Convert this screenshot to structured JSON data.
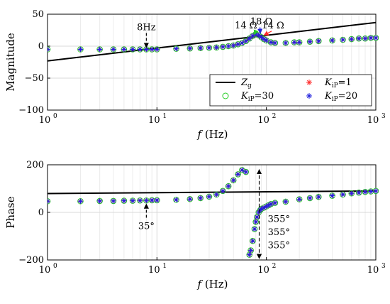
{
  "chart_data": [
    {
      "type": "scatter",
      "ylabel": "Magnitude",
      "xlabel_var": "f",
      "xlabel_unit": "(Hz)",
      "xscale": "log",
      "xlim": [
        1,
        1000
      ],
      "ylim": [
        -100,
        50
      ],
      "yticks": [
        "50",
        "0",
        "−50",
        "−100"
      ],
      "ytick_values": [
        50,
        0,
        -50,
        -100
      ],
      "xtick_mantissa": "10",
      "xtick_exponents": [
        "0",
        "1",
        "2",
        "3"
      ],
      "grid": true,
      "legend": {
        "placement": "bottom-right",
        "entries": [
          {
            "symbol": "line",
            "color": "#000000",
            "base": "Z",
            "sub": "g",
            "rest": ""
          },
          {
            "symbol": "star",
            "color": "#ff2a2a",
            "base": "K",
            "sub": "iP",
            "rest": "=1"
          },
          {
            "symbol": "circle",
            "color": "#22cc22",
            "base": "K",
            "sub": "iP",
            "rest": "=30"
          },
          {
            "symbol": "star",
            "color": "#2020dd",
            "base": "K",
            "sub": "iP",
            "rest": "=20"
          }
        ]
      },
      "series": [
        {
          "name": "Zg",
          "style": "line",
          "color": "#000000",
          "x": [
            1,
            1000
          ],
          "y": [
            -23,
            37
          ]
        },
        {
          "name": "KiP=1",
          "style": "star",
          "color": "#ff2a2a",
          "x": [
            1,
            2,
            3,
            4,
            5,
            6,
            7,
            8,
            9,
            10,
            15,
            20,
            25,
            30,
            35,
            40,
            45,
            50,
            55,
            60,
            65,
            70,
            75,
            80,
            85,
            90,
            95,
            100,
            110,
            120,
            150,
            180,
            200,
            250,
            300,
            400,
            500,
            600,
            700,
            800,
            900,
            1000
          ],
          "y": [
            -5,
            -5,
            -5,
            -5,
            -5,
            -5,
            -5,
            -5,
            -5,
            -5,
            -4,
            -3.5,
            -3,
            -2.5,
            -2,
            -1,
            0,
            1,
            3,
            5,
            8,
            12,
            16,
            19,
            17,
            14,
            11,
            9,
            6,
            5,
            5,
            6,
            6,
            7,
            8,
            9,
            10,
            11,
            12,
            12,
            13,
            13
          ]
        },
        {
          "name": "KiP=30",
          "style": "circle",
          "color": "#22cc22",
          "x": [
            1,
            2,
            3,
            4,
            5,
            6,
            7,
            8,
            9,
            10,
            15,
            20,
            25,
            30,
            35,
            40,
            45,
            50,
            55,
            60,
            65,
            70,
            75,
            80,
            85,
            90,
            95,
            100,
            110,
            120,
            150,
            180,
            200,
            250,
            300,
            400,
            500,
            600,
            700,
            800,
            900,
            1000
          ],
          "y": [
            -5,
            -5,
            -5,
            -5,
            -5,
            -5,
            -5,
            -5,
            -5,
            -5,
            -4,
            -3.5,
            -3,
            -2.5,
            -2,
            -1,
            0,
            1,
            3,
            5,
            8,
            12,
            16,
            19,
            17,
            14,
            11,
            9,
            6,
            5,
            5,
            6,
            6,
            7,
            8,
            9,
            10,
            11,
            12,
            12,
            13,
            13
          ]
        },
        {
          "name": "KiP=20",
          "style": "star",
          "color": "#2020dd",
          "x": [
            1,
            2,
            3,
            4,
            5,
            6,
            7,
            8,
            9,
            10,
            15,
            20,
            25,
            30,
            35,
            40,
            45,
            50,
            55,
            60,
            65,
            70,
            75,
            80,
            85,
            90,
            95,
            100,
            110,
            120,
            150,
            180,
            200,
            250,
            300,
            400,
            500,
            600,
            700,
            800,
            900,
            1000
          ],
          "y": [
            -5,
            -5,
            -5,
            -5,
            -5,
            -5,
            -5,
            -5,
            -5,
            -5,
            -4,
            -3.5,
            -3,
            -2.5,
            -2,
            -1,
            0,
            1,
            3,
            5,
            8,
            12,
            16,
            19,
            17,
            14,
            11,
            9,
            6,
            5,
            5,
            6,
            6,
            7,
            8,
            9,
            10,
            11,
            12,
            12,
            13,
            13
          ]
        }
      ],
      "annotations": [
        {
          "text": "8Hz",
          "x": 8,
          "y": 25,
          "arrow_to": [
            8,
            -2
          ],
          "color": "#000000"
        },
        {
          "text": "14 Ω",
          "x": 65,
          "y": 28,
          "arrow_to": [
            78,
            18
          ],
          "color": "#22cc22"
        },
        {
          "text": "18 Ω",
          "x": 90,
          "y": 34,
          "arrow_to": [
            88,
            20
          ],
          "color": "#2020dd"
        },
        {
          "text": "14 Ω",
          "x": 115,
          "y": 28,
          "arrow_to": [
            95,
            17
          ],
          "color": "#ff2a2a"
        }
      ]
    },
    {
      "type": "scatter",
      "ylabel": "Phase",
      "xlabel_var": "f",
      "xlabel_unit": "(Hz)",
      "xscale": "log",
      "xlim": [
        1,
        1000
      ],
      "ylim": [
        -200,
        200
      ],
      "yticks": [
        "200",
        "0",
        "−200"
      ],
      "ytick_values": [
        200,
        0,
        -200
      ],
      "xtick_mantissa": "10",
      "xtick_exponents": [
        "0",
        "1",
        "2",
        "3"
      ],
      "grid": true,
      "series": [
        {
          "name": "Zg",
          "style": "line",
          "color": "#000000",
          "x": [
            1,
            1000
          ],
          "y": [
            79,
            90
          ]
        },
        {
          "name": "KiP=1",
          "style": "star",
          "color": "#ff2a2a",
          "x": [
            1,
            2,
            3,
            4,
            5,
            6,
            7,
            8,
            9,
            10,
            15,
            20,
            25,
            30,
            35,
            40,
            45,
            50,
            55,
            60,
            65,
            70,
            72,
            75,
            78,
            80,
            82,
            85,
            88,
            90,
            95,
            100,
            105,
            110,
            120,
            150,
            200,
            250,
            300,
            400,
            500,
            600,
            700,
            800,
            900,
            1000
          ],
          "y": [
            47,
            47,
            48,
            48,
            49,
            49,
            50,
            50,
            51,
            51,
            53,
            56,
            60,
            66,
            75,
            90,
            110,
            135,
            160,
            178,
            170,
            -178,
            -160,
            -120,
            -70,
            -40,
            -20,
            0,
            10,
            15,
            20,
            25,
            30,
            35,
            40,
            45,
            55,
            60,
            65,
            70,
            75,
            80,
            83,
            86,
            88,
            90
          ]
        },
        {
          "name": "KiP=30",
          "style": "circle",
          "color": "#22cc22",
          "x": [
            1,
            2,
            3,
            4,
            5,
            6,
            7,
            8,
            9,
            10,
            15,
            20,
            25,
            30,
            35,
            40,
            45,
            50,
            55,
            60,
            65,
            70,
            72,
            75,
            78,
            80,
            82,
            85,
            88,
            90,
            95,
            100,
            105,
            110,
            120,
            150,
            200,
            250,
            300,
            400,
            500,
            600,
            700,
            800,
            900,
            1000
          ],
          "y": [
            47,
            47,
            48,
            48,
            49,
            49,
            50,
            50,
            51,
            51,
            53,
            56,
            60,
            66,
            75,
            90,
            110,
            135,
            160,
            178,
            170,
            -178,
            -160,
            -120,
            -70,
            -40,
            -20,
            0,
            10,
            15,
            20,
            25,
            30,
            35,
            40,
            45,
            55,
            60,
            65,
            70,
            75,
            80,
            83,
            86,
            88,
            90
          ]
        },
        {
          "name": "KiP=20",
          "style": "star",
          "color": "#2020dd",
          "x": [
            1,
            2,
            3,
            4,
            5,
            6,
            7,
            8,
            9,
            10,
            15,
            20,
            25,
            30,
            35,
            40,
            45,
            50,
            55,
            60,
            65,
            70,
            72,
            75,
            78,
            80,
            82,
            85,
            88,
            90,
            95,
            100,
            105,
            110,
            120,
            150,
            200,
            250,
            300,
            400,
            500,
            600,
            700,
            800,
            900,
            1000
          ],
          "y": [
            47,
            47,
            48,
            48,
            49,
            49,
            50,
            50,
            51,
            51,
            53,
            56,
            60,
            66,
            75,
            90,
            110,
            135,
            160,
            178,
            170,
            -178,
            -160,
            -120,
            -70,
            -40,
            -20,
            0,
            10,
            15,
            20,
            25,
            30,
            35,
            40,
            45,
            55,
            60,
            65,
            70,
            75,
            80,
            83,
            86,
            88,
            90
          ]
        }
      ],
      "annotations": [
        {
          "text": "35°",
          "x": 8,
          "y": -70,
          "arrow_to": [
            8,
            35
          ],
          "color": "#000000"
        },
        {
          "text": "355°",
          "x": 100,
          "y": -40,
          "color": "#22cc22"
        },
        {
          "text": "355°",
          "x": 100,
          "y": -95,
          "color": "#2020dd"
        },
        {
          "text": "355°",
          "x": 100,
          "y": -150,
          "color": "#8b3a1a"
        }
      ],
      "vertical_arrow": {
        "x": 86,
        "y_from": 180,
        "y_to": -200
      }
    }
  ]
}
